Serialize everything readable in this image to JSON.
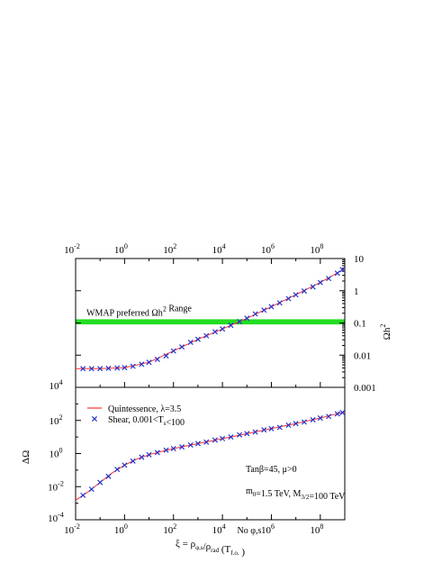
{
  "chart_data": [
    {
      "type": "line",
      "panel": "top",
      "xscale": "log",
      "yscale": "log",
      "xlim": [
        0.01,
        1000000000.0
      ],
      "ylim": [
        0.001,
        10
      ],
      "ylabel_base": "Ωh",
      "ylabel_exp": "2",
      "top_axis_ticks": [
        {
          "base": "10",
          "exp": "-2"
        },
        {
          "base": "10",
          "exp": "0"
        },
        {
          "base": "10",
          "exp": "2"
        },
        {
          "base": "10",
          "exp": "4"
        },
        {
          "base": "10",
          "exp": "6"
        },
        {
          "base": "10",
          "exp": "8"
        }
      ],
      "right_axis_ticks": [
        "10",
        "1",
        "0.1",
        "0.01",
        "0.001"
      ],
      "band": {
        "label_pre": "WMAP preferred Ωh",
        "label_exp": "2",
        "label_post": " Range",
        "ymin": 0.09,
        "ymax": 0.13,
        "color": "#22dd22"
      },
      "series": [
        {
          "name": "",
          "color": "#ff3030",
          "style": "line",
          "x": [
            0.01,
            0.1,
            1,
            10,
            100,
            1000,
            10000,
            100000,
            1000000,
            10000000,
            100000000,
            1000000000
          ],
          "y": [
            0.0038,
            0.0038,
            0.0041,
            0.006,
            0.0135,
            0.031,
            0.065,
            0.14,
            0.32,
            0.75,
            1.8,
            4.8
          ]
        },
        {
          "name": "",
          "color": "#2233cc",
          "style": "marker",
          "x": [
            0.02,
            0.045,
            0.1,
            0.22,
            0.5,
            1,
            2.2,
            5,
            10,
            22,
            50,
            100,
            220,
            500,
            1000,
            2200,
            5000,
            10000,
            22000,
            50000,
            100000,
            220000,
            500000,
            1000000,
            2200000,
            5000000,
            10000000,
            22000000,
            50000000,
            100000000,
            220000000,
            500000000,
            800000000
          ],
          "y": [
            0.0038,
            0.0038,
            0.0038,
            0.0039,
            0.004,
            0.0041,
            0.0045,
            0.0052,
            0.006,
            0.0074,
            0.0095,
            0.0135,
            0.018,
            0.025,
            0.031,
            0.04,
            0.053,
            0.065,
            0.084,
            0.11,
            0.14,
            0.19,
            0.25,
            0.32,
            0.42,
            0.57,
            0.75,
            0.98,
            1.32,
            1.8,
            2.4,
            3.5,
            4.5
          ]
        }
      ]
    },
    {
      "type": "line",
      "panel": "bottom",
      "xscale": "log",
      "yscale": "log",
      "xlim": [
        0.01,
        1000000000.0
      ],
      "ylim": [
        0.0001,
        10000
      ],
      "ylabel": "ΔΩ",
      "x_axis_ticks": [
        {
          "base": "10",
          "exp": "-2"
        },
        {
          "base": "10",
          "exp": "0"
        },
        {
          "base": "10",
          "exp": "2"
        },
        {
          "base": "10",
          "exp": "4"
        },
        {
          "base": "10",
          "exp": "6"
        },
        {
          "base": "10",
          "exp": "8"
        }
      ],
      "y_axis_ticks": [
        {
          "base": "10",
          "exp": "4"
        },
        {
          "base": "10",
          "exp": "2"
        },
        {
          "base": "10",
          "exp": "0"
        },
        {
          "base": "10",
          "exp": "-2"
        },
        {
          "base": "10",
          "exp": "-4"
        }
      ],
      "xlabel": {
        "pre": "ξ = ρ",
        "sub1": "φ,s",
        "mid": "/ρ",
        "sub2": "rad",
        "post": " (T",
        "sub3": "f.o.",
        "post2": "    )",
        "note": "No φ,s"
      },
      "legend": [
        {
          "label": "Quintessence, λ=3.5",
          "color": "#ff3030",
          "style": "line"
        },
        {
          "label_pre": "Shear, 0.001<T",
          "label_sub": "s",
          "label_post": "<100",
          "color": "#2233cc",
          "style": "marker"
        }
      ],
      "annotations": {
        "line1": "Tanβ=45, μ>0",
        "line2_pre": "m",
        "line2_sub": "0",
        "line2_mid": "=1.5 TeV, M",
        "line2_sub2": "3/2",
        "line2_post": "=100 TeV"
      },
      "series": [
        {
          "name": "Quintessence, λ=3.5",
          "color": "#ff3030",
          "style": "line",
          "x": [
            0.01,
            0.03,
            0.1,
            0.3,
            1,
            3,
            10,
            30,
            100,
            300,
            1000,
            3000,
            10000,
            30000,
            100000,
            300000,
            1000000,
            3000000,
            10000000,
            30000000,
            100000000,
            300000000,
            1000000000
          ],
          "y": [
            0.0015,
            0.0045,
            0.018,
            0.065,
            0.2,
            0.45,
            0.85,
            1.3,
            2,
            2.8,
            4,
            5.5,
            8,
            11,
            16,
            22,
            32,
            45,
            65,
            95,
            140,
            210,
            330
          ]
        },
        {
          "name": "Shear, 0.001<Ts<100",
          "color": "#2233cc",
          "style": "marker",
          "x": [
            0.02,
            0.045,
            0.1,
            0.22,
            0.5,
            1,
            2.2,
            5,
            10,
            22,
            50,
            100,
            220,
            500,
            1000,
            2200,
            5000,
            10000,
            22000,
            50000,
            100000,
            220000,
            500000,
            1000000,
            2200000,
            5000000,
            10000000,
            22000000,
            50000000,
            100000000,
            220000000,
            500000000,
            800000000
          ],
          "y": [
            0.003,
            0.007,
            0.018,
            0.042,
            0.11,
            0.2,
            0.35,
            0.6,
            0.85,
            1.15,
            1.6,
            2,
            2.5,
            3.3,
            4,
            4.9,
            6.5,
            8,
            10,
            13.5,
            16,
            20,
            27,
            32,
            38,
            52,
            65,
            80,
            110,
            140,
            175,
            250,
            300
          ]
        }
      ]
    }
  ]
}
